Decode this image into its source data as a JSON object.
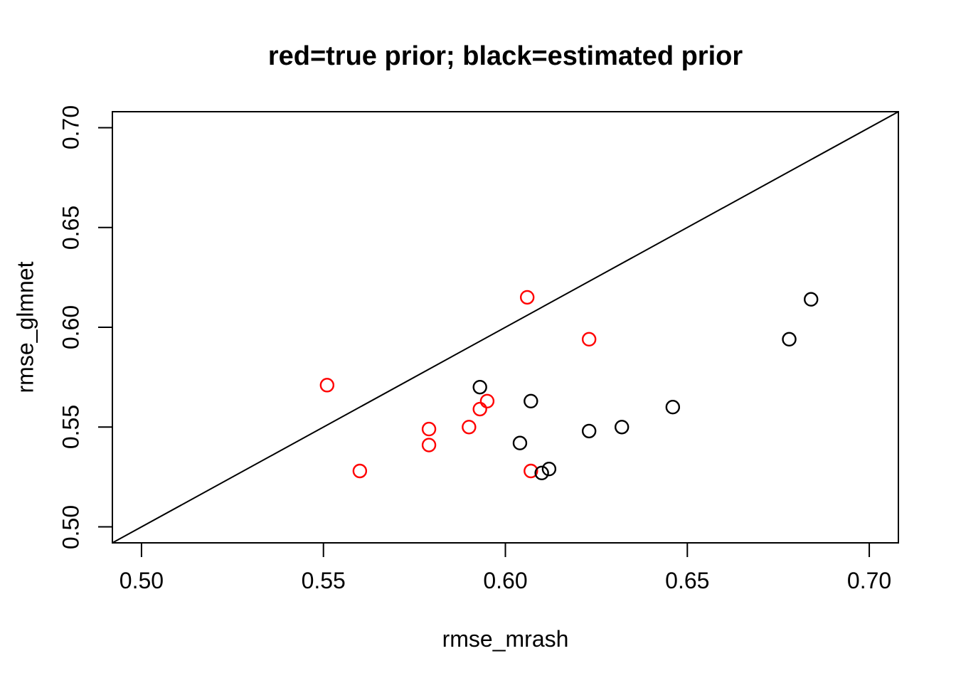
{
  "figure": {
    "background": "#ffffff",
    "foreground": "#000000"
  },
  "chart_data": {
    "type": "scatter",
    "title": "red=true prior; black=estimated prior",
    "xlabel": "rmse_mrash",
    "ylabel": "rmse_glmnet",
    "xlim": [
      0.492,
      0.708
    ],
    "ylim": [
      0.492,
      0.708
    ],
    "x_ticks": [
      "0.50",
      "0.55",
      "0.60",
      "0.65",
      "0.70"
    ],
    "x_tick_values": [
      0.5,
      0.55,
      0.6,
      0.65,
      0.7
    ],
    "y_ticks": [
      "0.50",
      "0.55",
      "0.60",
      "0.65",
      "0.70"
    ],
    "y_tick_values": [
      0.5,
      0.55,
      0.6,
      0.65,
      0.7
    ],
    "grid": false,
    "legend_position": "none",
    "reference_line": {
      "type": "identity",
      "intercept": 0,
      "slope": 1,
      "color": "#000000"
    },
    "series": [
      {
        "name": "true prior",
        "color": "#ff0000",
        "marker": "open-circle",
        "points": [
          [
            0.551,
            0.571
          ],
          [
            0.56,
            0.528
          ],
          [
            0.579,
            0.541
          ],
          [
            0.579,
            0.549
          ],
          [
            0.59,
            0.55
          ],
          [
            0.593,
            0.559
          ],
          [
            0.595,
            0.563
          ],
          [
            0.606,
            0.615
          ],
          [
            0.607,
            0.528
          ],
          [
            0.623,
            0.594
          ]
        ]
      },
      {
        "name": "estimated prior",
        "color": "#000000",
        "marker": "open-circle",
        "points": [
          [
            0.593,
            0.57
          ],
          [
            0.604,
            0.542
          ],
          [
            0.607,
            0.563
          ],
          [
            0.61,
            0.527
          ],
          [
            0.612,
            0.529
          ],
          [
            0.623,
            0.548
          ],
          [
            0.632,
            0.55
          ],
          [
            0.646,
            0.56
          ],
          [
            0.678,
            0.594
          ],
          [
            0.684,
            0.614
          ]
        ]
      }
    ]
  }
}
